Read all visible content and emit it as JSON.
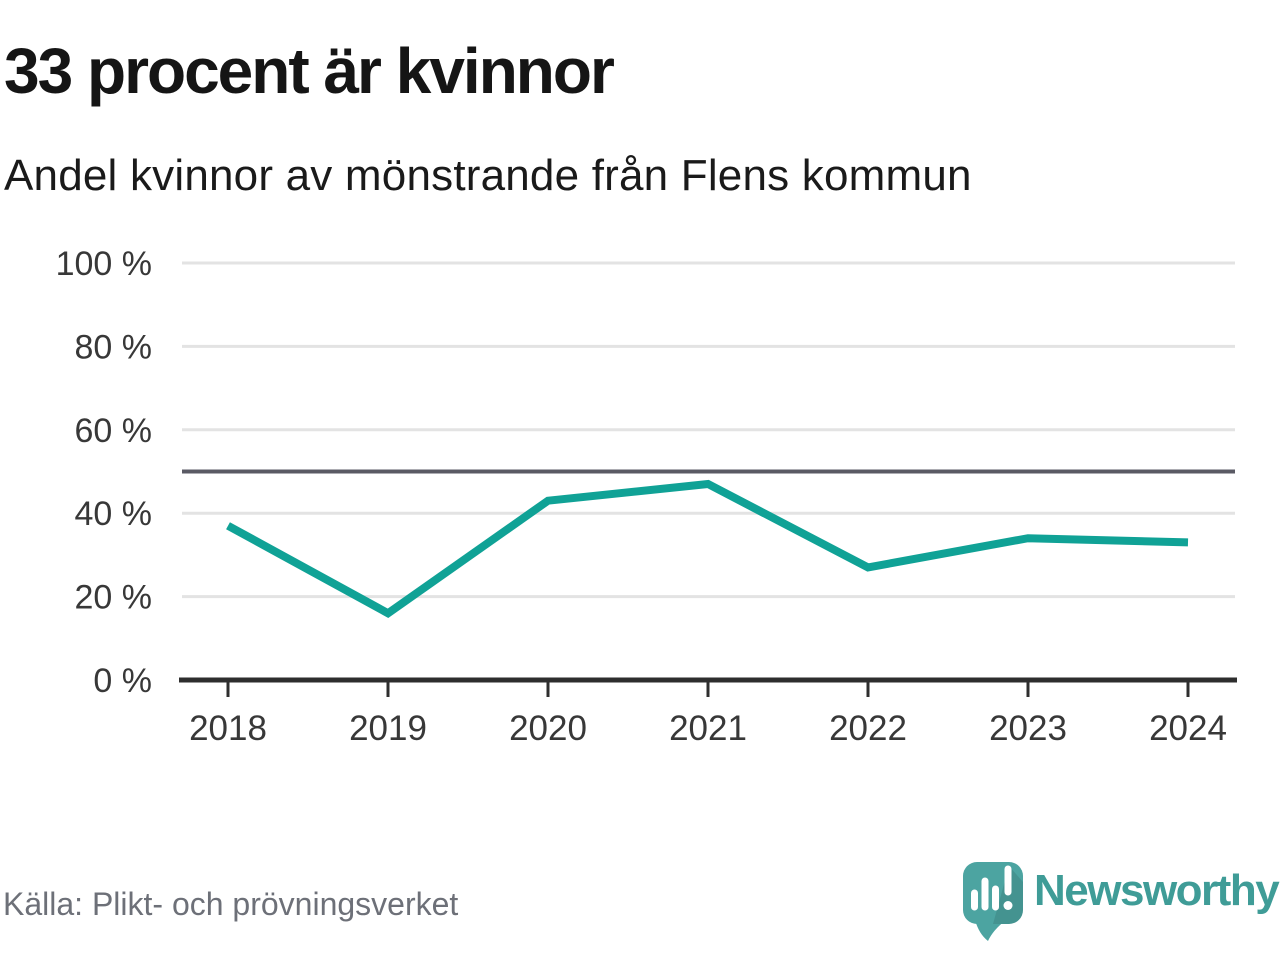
{
  "header": {
    "title": "33 procent är kvinnor",
    "subtitle": "Andel kvinnor av mönstrande från Flens kommun"
  },
  "chart_data": {
    "type": "line",
    "title": "33 procent är kvinnor",
    "subtitle": "Andel kvinnor av mönstrande från Flens kommun",
    "categories": [
      "2018",
      "2019",
      "2020",
      "2021",
      "2022",
      "2023",
      "2024"
    ],
    "series": [
      {
        "name": "Andel kvinnor",
        "values": [
          37,
          16,
          43,
          47,
          27,
          34,
          33
        ]
      }
    ],
    "unit": "%",
    "ylim": [
      0,
      100
    ],
    "yticks": [
      0,
      20,
      40,
      60,
      80,
      100
    ],
    "ytick_labels": [
      "0 %",
      "20 %",
      "40 %",
      "60 %",
      "80 %",
      "100 %"
    ],
    "reference_line": 50,
    "grid": "horizontal",
    "legend": "none"
  },
  "footer": {
    "source": "Källa: Plikt- och prövningsverket",
    "brand": "Newsworthy"
  },
  "icons": {
    "logo": "newsworthy-speech-bubble-bar-chart"
  },
  "colors": {
    "line": "#10a296",
    "reference_line": "#5a5a64",
    "grid": "#e3e3e3",
    "axis": "#2e2e2e",
    "tick_text": "#383838",
    "title_text": "#151515",
    "source_text": "#6d7078",
    "brand_teal": "#3f9c97",
    "logo_bubble": "#4ca4a1"
  }
}
